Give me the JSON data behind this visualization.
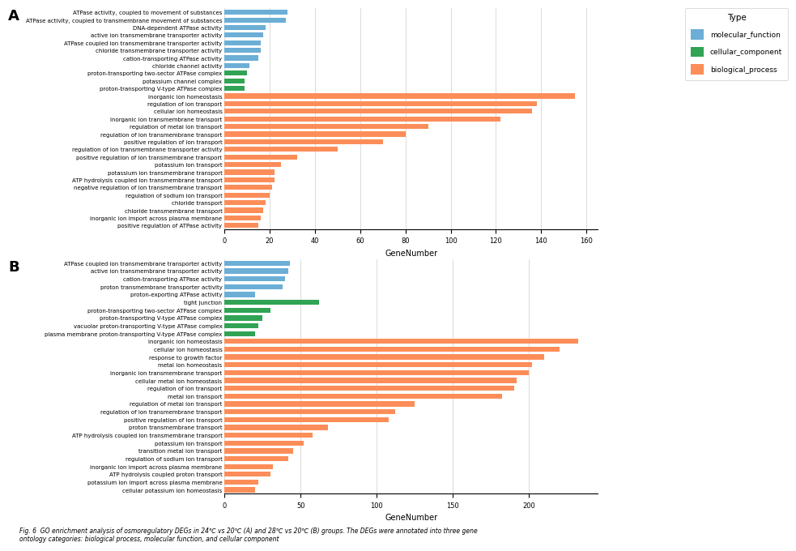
{
  "panel_A": {
    "labels": [
      "ATPase activity, coupled to movement of substances",
      "ATPase activity, coupled to transmembrane movement of substances",
      "DNA-dependent ATPase activity",
      "active ion transmembrane transporter activity",
      "ATPase coupled ion transmembrane transporter activity",
      "chloride transmembrane transporter activity",
      "cation-transporting ATPase activity",
      "chloride channel activity",
      "proton-transporting two-sector ATPase complex",
      "potassium channel complex",
      "proton-transporting V-type ATPase complex",
      "inorganic ion homeostasis",
      "regulation of ion transport",
      "cellular ion homeostasis",
      "inorganic ion transmembrane transport",
      "regulation of metal ion transport",
      "regulation of ion transmembrane transport",
      "positive regulation of ion transport",
      "regulation of ion transmembrane transporter activity",
      "positive regulation of ion transmembrane transport",
      "potassium ion transport",
      "potassium ion transmembrane transport",
      "ATP hydrolysis coupled ion transmembrane transport",
      "negative regulation of ion transmembrane transport",
      "regulation of sodium ion transport",
      "chloride transport",
      "chloride transmembrane transport",
      "inorganic ion import across plasma membrane",
      "positive regulation of ATPase activity"
    ],
    "values": [
      28,
      27,
      18,
      17,
      16,
      16,
      15,
      11,
      10,
      9,
      9,
      155,
      138,
      136,
      122,
      90,
      80,
      70,
      50,
      32,
      25,
      22,
      22,
      21,
      20,
      18,
      17,
      16,
      15
    ],
    "colors": [
      "mf",
      "mf",
      "mf",
      "mf",
      "mf",
      "mf",
      "mf",
      "mf",
      "cc",
      "cc",
      "cc",
      "bp",
      "bp",
      "bp",
      "bp",
      "bp",
      "bp",
      "bp",
      "bp",
      "bp",
      "bp",
      "bp",
      "bp",
      "bp",
      "bp",
      "bp",
      "bp",
      "bp",
      "bp"
    ],
    "xlim": 165
  },
  "panel_B": {
    "labels": [
      "ATPase coupled ion transmembrane transporter activity",
      "active ion transmembrane transporter activity",
      "cation-transporting ATPase activity",
      "proton transmembrane transporter activity",
      "proton-exporting ATPase activity",
      "tight junction",
      "proton-transporting two-sector ATPase complex",
      "proton-transporting V-type ATPase complex",
      "vacuolar proton-transporting V-type ATPase complex",
      "plasma membrane proton-transporting V-type ATPase complex",
      "inorganic ion homeostasis",
      "cellular ion homeostasis",
      "response to growth factor",
      "metal ion homeostasis",
      "inorganic ion transmembrane transport",
      "cellular metal ion homeostasis",
      "regulation of ion transport",
      "metal ion transport",
      "regulation of metal ion transport",
      "regulation of ion transmembrane transport",
      "positive regulation of ion transport",
      "proton transmembrane transport",
      "ATP hydrolysis coupled ion transmembrane transport",
      "potassium ion transport",
      "transition metal ion transport",
      "regulation of sodium ion transport",
      "inorganic ion import across plasma membrane",
      "ATP hydrolysis coupled proton transport",
      "potassium ion import across plasma membrane",
      "cellular potassium ion homeostasis"
    ],
    "values": [
      43,
      42,
      40,
      38,
      20,
      62,
      30,
      25,
      22,
      20,
      232,
      220,
      210,
      202,
      200,
      192,
      190,
      182,
      125,
      112,
      108,
      68,
      58,
      52,
      45,
      42,
      32,
      30,
      22,
      20
    ],
    "colors": [
      "mf",
      "mf",
      "mf",
      "mf",
      "mf",
      "cc",
      "cc",
      "cc",
      "cc",
      "cc",
      "bp",
      "bp",
      "bp",
      "bp",
      "bp",
      "bp",
      "bp",
      "bp",
      "bp",
      "bp",
      "bp",
      "bp",
      "bp",
      "bp",
      "bp",
      "bp",
      "bp",
      "bp",
      "bp",
      "bp"
    ],
    "xlim": 245
  },
  "color_map": {
    "mf": "#6baed6",
    "cc": "#31a354",
    "bp": "#fc8d59"
  },
  "legend_labels": [
    "molecular_function",
    "cellular_component",
    "biological_process"
  ],
  "legend_colors": [
    "#6baed6",
    "#31a354",
    "#fc8d59"
  ],
  "xlabel": "GeneNumber",
  "fig_caption": "Fig. 6  GO enrichment analysis of osmoregulatory DEGs in 24℃ vs 20℃ (A) and 28℃ vs 20℃ (B) groups. The DEGs were annotated into three gene\nontology categories: biological process, molecular function, and cellular component",
  "background_color": "#ffffff",
  "bar_height": 0.65,
  "label_fontsize": 5.0,
  "tick_fontsize": 6.0
}
